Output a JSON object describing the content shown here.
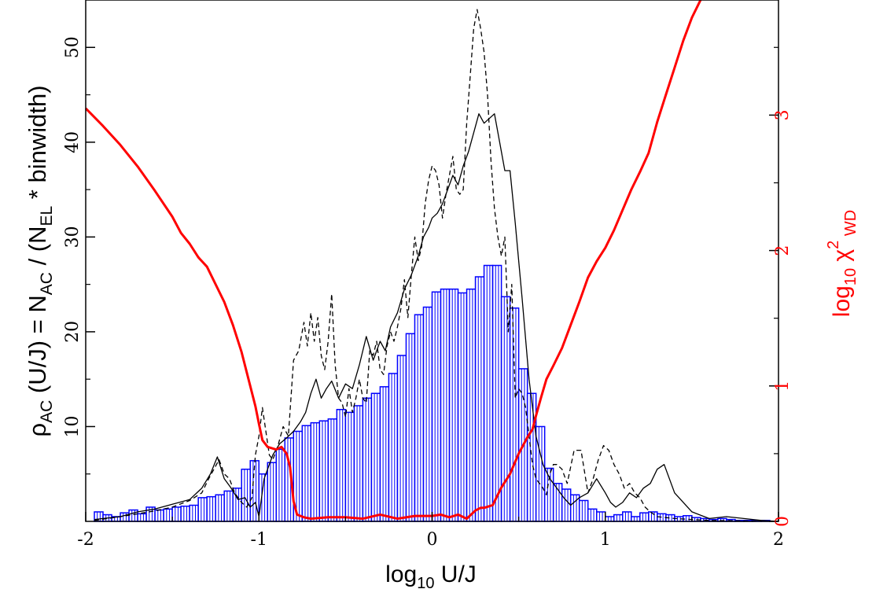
{
  "chart_data": {
    "type": "bar",
    "xlabel": {
      "base": "log",
      "sub": "10",
      "rest": " U/J"
    },
    "ylabel_left": {
      "p1": "ρ",
      "p1sub": "AC",
      "p2": " (U/J) = N",
      "p2sub": "AC",
      "p3": " / (N",
      "p3sub": "EL",
      "p4": " * binwidth)"
    },
    "ylabel_right": {
      "base": "log",
      "sub": "10",
      "chi": " χ",
      "sup": "2",
      "sub2": " WD"
    },
    "xlim": [
      -2,
      2
    ],
    "ylim_left": [
      0,
      55
    ],
    "ylim_right": [
      0,
      3.85
    ],
    "x_ticks": [
      "-2",
      "-1",
      "0",
      "1",
      "2"
    ],
    "y_left_ticks": [
      "10",
      "20",
      "30",
      "40",
      "50"
    ],
    "y_right_ticks": [
      "0",
      "1",
      "2",
      "3"
    ],
    "colors": {
      "histogram": "#0000ff",
      "chi2": "#ff0000",
      "lines": "#000000",
      "right_axis_labels": "#ff0000"
    },
    "histogram": {
      "bin_width": 0.05,
      "bin_starts": [
        -1.95,
        -1.9,
        -1.85,
        -1.8,
        -1.75,
        -1.7,
        -1.65,
        -1.6,
        -1.55,
        -1.5,
        -1.45,
        -1.4,
        -1.35,
        -1.3,
        -1.25,
        -1.2,
        -1.15,
        -1.1,
        -1.05,
        -1.0,
        -0.95,
        -0.9,
        -0.85,
        -0.8,
        -0.75,
        -0.7,
        -0.65,
        -0.6,
        -0.55,
        -0.5,
        -0.45,
        -0.4,
        -0.35,
        -0.3,
        -0.25,
        -0.2,
        -0.15,
        -0.1,
        -0.05,
        0.0,
        0.05,
        0.1,
        0.15,
        0.2,
        0.25,
        0.3,
        0.35,
        0.4,
        0.45,
        0.5,
        0.55,
        0.6,
        0.65,
        0.7,
        0.75,
        0.8,
        0.85,
        0.9,
        0.95,
        1.0,
        1.05,
        1.1,
        1.15,
        1.2,
        1.25,
        1.3,
        1.35,
        1.4,
        1.45,
        1.5,
        1.55,
        1.6,
        1.65,
        1.7,
        1.75,
        1.8,
        1.85,
        1.9,
        1.95
      ],
      "values": [
        1.0,
        0.7,
        0.5,
        0.9,
        1.2,
        0.8,
        1.5,
        1.2,
        1.3,
        1.5,
        1.6,
        1.7,
        2.5,
        2.6,
        2.8,
        3.2,
        3.5,
        5.5,
        6.4,
        5.0,
        6.2,
        7.6,
        8.8,
        9.5,
        10.1,
        10.4,
        10.6,
        10.8,
        11.8,
        11.5,
        12.2,
        13.0,
        13.5,
        14.2,
        15.6,
        17.5,
        19.8,
        21.8,
        22.6,
        24.2,
        24.5,
        24.5,
        24.1,
        24.5,
        25.8,
        27.0,
        27.0,
        23.7,
        22.5,
        16.1,
        13.5,
        10.0,
        5.6,
        4.0,
        3.4,
        2.8,
        2.2,
        1.3,
        1.0,
        0.5,
        0.7,
        1.0,
        0.5,
        0.9,
        1.0,
        0.8,
        0.7,
        0.5,
        0.6,
        0.4,
        0.3,
        0.2,
        0.3,
        0.2,
        0.1,
        0.1,
        0.1,
        0.1,
        0.0
      ]
    },
    "series": [
      {
        "style": "solid",
        "x": [
          -1.95,
          -1.8,
          -1.7,
          -1.6,
          -1.5,
          -1.4,
          -1.33,
          -1.28,
          -1.24,
          -1.2,
          -1.16,
          -1.12,
          -1.08,
          -1.05,
          -1.02,
          -1.0,
          -0.97,
          -0.95,
          -0.92,
          -0.88,
          -0.84,
          -0.8,
          -0.76,
          -0.73,
          -0.7,
          -0.67,
          -0.64,
          -0.61,
          -0.58,
          -0.54,
          -0.5,
          -0.46,
          -0.42,
          -0.38,
          -0.34,
          -0.3,
          -0.27,
          -0.24,
          -0.2,
          -0.16,
          -0.12,
          -0.08,
          -0.05,
          -0.02,
          0.0,
          0.03,
          0.06,
          0.09,
          0.12,
          0.15,
          0.18,
          0.21,
          0.24,
          0.27,
          0.3,
          0.33,
          0.36,
          0.39,
          0.42,
          0.45,
          0.48,
          0.52,
          0.56,
          0.6,
          0.64,
          0.68,
          0.72,
          0.76,
          0.8,
          0.85,
          0.9,
          0.95,
          1.0,
          1.03,
          1.06,
          1.1,
          1.14,
          1.18,
          1.22,
          1.26,
          1.3,
          1.34,
          1.4,
          1.5,
          1.6,
          1.7,
          1.8,
          1.9,
          2.0
        ],
        "y": [
          0.2,
          0.5,
          1.0,
          1.3,
          1.8,
          2.3,
          3.5,
          5.0,
          6.8,
          4.5,
          3.5,
          2.3,
          2.5,
          1.5,
          2.0,
          0.5,
          4.5,
          5.5,
          7.0,
          8.2,
          8.8,
          9.5,
          10.5,
          11.5,
          13.5,
          15.0,
          13.0,
          14.0,
          14.8,
          13.0,
          14.5,
          14.0,
          16.5,
          19.5,
          17.0,
          19.0,
          18.0,
          20.5,
          22.0,
          24.5,
          26.0,
          28.0,
          30.0,
          31.0,
          32.0,
          32.5,
          33.5,
          35.0,
          36.5,
          35.5,
          37.5,
          39.0,
          41.0,
          43.0,
          42.0,
          42.5,
          43.0,
          40.0,
          37.0,
          37.0,
          31.5,
          23.5,
          15.0,
          9.0,
          6.0,
          4.5,
          3.5,
          2.5,
          1.7,
          2.5,
          3.0,
          4.5,
          3.0,
          2.0,
          1.5,
          2.0,
          3.0,
          2.5,
          3.5,
          4.0,
          5.5,
          6.0,
          3.0,
          1.0,
          0.3,
          0.5,
          0.3,
          0.1,
          0.0
        ]
      },
      {
        "style": "dashed",
        "x": [
          -1.95,
          -1.8,
          -1.7,
          -1.6,
          -1.5,
          -1.4,
          -1.33,
          -1.29,
          -1.26,
          -1.23,
          -1.2,
          -1.17,
          -1.14,
          -1.1,
          -1.07,
          -1.04,
          -1.02,
          -1.0,
          -0.98,
          -0.96,
          -0.94,
          -0.92,
          -0.89,
          -0.86,
          -0.83,
          -0.8,
          -0.77,
          -0.74,
          -0.72,
          -0.7,
          -0.68,
          -0.66,
          -0.64,
          -0.62,
          -0.6,
          -0.58,
          -0.56,
          -0.54,
          -0.52,
          -0.5,
          -0.48,
          -0.46,
          -0.44,
          -0.42,
          -0.4,
          -0.38,
          -0.36,
          -0.34,
          -0.32,
          -0.3,
          -0.28,
          -0.26,
          -0.24,
          -0.22,
          -0.2,
          -0.18,
          -0.16,
          -0.14,
          -0.12,
          -0.1,
          -0.08,
          -0.06,
          -0.04,
          -0.02,
          0.0,
          0.02,
          0.04,
          0.06,
          0.08,
          0.1,
          0.12,
          0.14,
          0.16,
          0.18,
          0.2,
          0.22,
          0.24,
          0.26,
          0.28,
          0.3,
          0.32,
          0.34,
          0.36,
          0.38,
          0.4,
          0.42,
          0.44,
          0.46,
          0.48,
          0.5,
          0.52,
          0.54,
          0.56,
          0.58,
          0.6,
          0.62,
          0.64,
          0.66,
          0.68,
          0.7,
          0.72,
          0.75,
          0.78,
          0.82,
          0.86,
          0.9,
          0.93,
          0.96,
          0.99,
          1.02,
          1.05,
          1.08,
          1.11,
          1.14,
          1.17,
          1.2,
          1.23,
          1.26,
          1.3,
          1.35,
          1.4,
          1.5,
          1.6,
          1.8,
          2.0
        ],
        "y": [
          0.1,
          0.5,
          0.8,
          1.1,
          1.5,
          2.2,
          3.0,
          4.5,
          5.5,
          6.5,
          5.0,
          4.5,
          3.0,
          2.0,
          1.5,
          2.5,
          7.0,
          9.0,
          12.0,
          9.5,
          7.0,
          6.5,
          8.0,
          10.0,
          9.0,
          17.0,
          18.0,
          21.0,
          18.5,
          22.0,
          19.0,
          21.5,
          17.5,
          16.0,
          19.0,
          24.0,
          16.5,
          13.0,
          12.5,
          11.0,
          14.0,
          11.5,
          13.0,
          15.0,
          13.0,
          12.5,
          18.0,
          17.5,
          19.0,
          16.0,
          15.5,
          18.5,
          20.0,
          19.0,
          20.5,
          22.5,
          25.5,
          21.5,
          26.0,
          30.0,
          27.5,
          29.0,
          33.5,
          36.0,
          37.5,
          37.0,
          35.5,
          32.0,
          34.5,
          36.5,
          38.5,
          35.0,
          34.5,
          35.0,
          42.0,
          47.0,
          52.0,
          54.0,
          52.0,
          49.5,
          45.0,
          38.0,
          33.0,
          30.0,
          28.0,
          30.0,
          20.0,
          25.0,
          13.0,
          14.0,
          13.5,
          12.0,
          9.0,
          6.0,
          4.5,
          4.0,
          3.5,
          2.8,
          5.0,
          6.0,
          6.0,
          5.5,
          4.0,
          7.5,
          7.5,
          3.0,
          4.5,
          6.5,
          8.0,
          7.5,
          6.0,
          5.0,
          3.5,
          4.0,
          3.0,
          2.5,
          1.5,
          1.0,
          0.5,
          0.4,
          0.3,
          0.2,
          0.1,
          0.05,
          0.0
        ]
      },
      {
        "style": "solid-red",
        "x": [
          -2.0,
          -1.9,
          -1.8,
          -1.7,
          -1.6,
          -1.5,
          -1.45,
          -1.4,
          -1.35,
          -1.3,
          -1.25,
          -1.2,
          -1.15,
          -1.1,
          -1.05,
          -1.02,
          -1.0,
          -0.98,
          -0.95,
          -0.9,
          -0.87,
          -0.84,
          -0.82,
          -0.8,
          -0.78,
          -0.74,
          -0.7,
          -0.6,
          -0.5,
          -0.4,
          -0.3,
          -0.2,
          -0.1,
          0.0,
          0.05,
          0.1,
          0.15,
          0.2,
          0.25,
          0.28,
          0.3,
          0.35,
          0.4,
          0.45,
          0.5,
          0.55,
          0.58,
          0.6,
          0.63,
          0.66,
          0.7,
          0.75,
          0.8,
          0.85,
          0.9,
          0.95,
          1.0,
          1.05,
          1.1,
          1.15,
          1.2,
          1.25,
          1.3,
          1.35,
          1.4,
          1.45,
          1.5,
          1.55
        ],
        "y": [
          3.05,
          2.92,
          2.78,
          2.62,
          2.44,
          2.25,
          2.13,
          2.05,
          1.95,
          1.88,
          1.75,
          1.62,
          1.45,
          1.25,
          1.0,
          0.85,
          0.72,
          0.6,
          0.55,
          0.53,
          0.55,
          0.5,
          0.4,
          0.15,
          0.05,
          0.03,
          0.02,
          0.03,
          0.03,
          0.02,
          0.05,
          0.02,
          0.04,
          0.04,
          0.05,
          0.03,
          0.05,
          0.02,
          0.08,
          0.1,
          0.1,
          0.12,
          0.25,
          0.35,
          0.5,
          0.62,
          0.68,
          0.78,
          0.92,
          1.05,
          1.15,
          1.28,
          1.45,
          1.62,
          1.8,
          1.92,
          2.02,
          2.15,
          2.3,
          2.45,
          2.58,
          2.72,
          2.95,
          3.15,
          3.35,
          3.55,
          3.72,
          3.85
        ]
      }
    ]
  }
}
